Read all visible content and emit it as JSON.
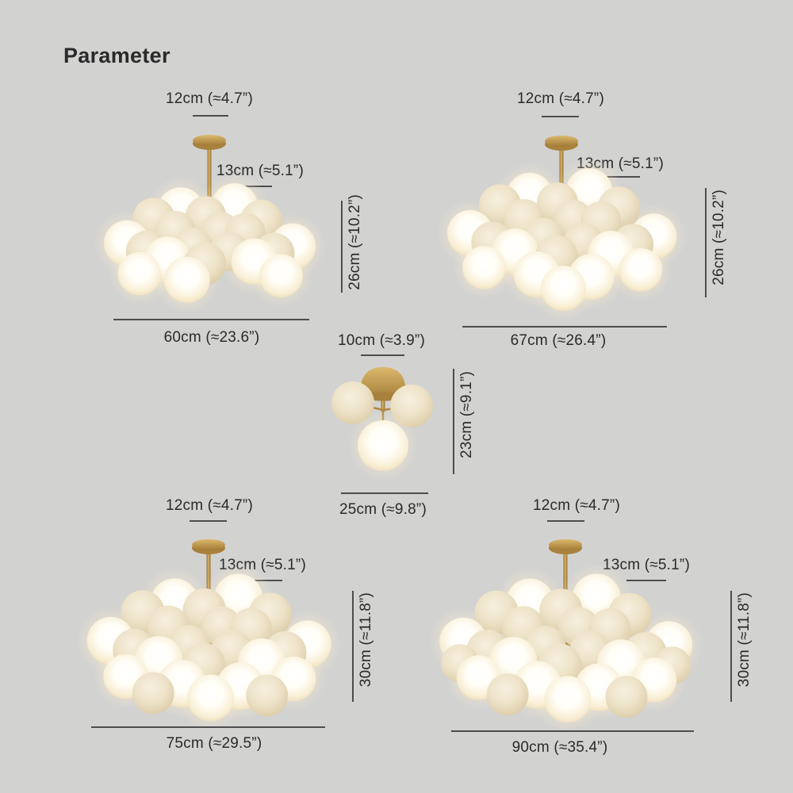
{
  "title": "Parameter",
  "fixtures": {
    "top_left": {
      "canopy": "12cm (≈4.7”)",
      "rod": "13cm (≈5.1”)",
      "height": "26cm (≈10.2”)",
      "width": "60cm (≈23.6”)"
    },
    "top_right": {
      "canopy": "12cm (≈4.7”)",
      "rod": "13cm (≈5.1”)",
      "height": "26cm (≈10.2”)",
      "width": "67cm (≈26.4”)"
    },
    "center": {
      "canopy": "10cm (≈3.9”)",
      "height": "23cm (≈9.1”)",
      "width": "25cm (≈9.8”)"
    },
    "bottom_left": {
      "canopy": "12cm (≈4.7”)",
      "rod": "13cm (≈5.1”)",
      "height": "30cm (≈11.8”)",
      "width": "75cm (≈29.5”)"
    },
    "bottom_right": {
      "canopy": "12cm (≈4.7”)",
      "rod": "13cm (≈5.1”)",
      "height": "30cm (≈11.8”)",
      "width": "90cm (≈35.4”)"
    }
  },
  "colors": {
    "background": "#d2d2d1",
    "text": "#2a2a2a",
    "line": "#4d4d4d",
    "brass": "#c49a4e",
    "globe_cream": "#eee3c9",
    "globe_glow": "#fff3d6"
  }
}
